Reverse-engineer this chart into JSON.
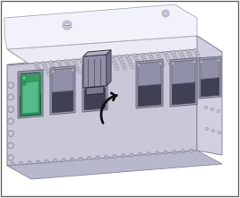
{
  "fig_width": 2.68,
  "fig_height": 2.21,
  "dpi": 100,
  "bg_color": "#ffffff",
  "chassis_top_color": "#e8e8f0",
  "chassis_front_color": "#c8c8d8",
  "chassis_side_color": "#d0d0e0",
  "chassis_edge_color": "#888899",
  "dot_fill": "#c0c0d0",
  "dot_edge": "#909098",
  "port_body_color": "#a8a8c0",
  "port_dark_color": "#888898",
  "port_inner_color": "#5a5a70",
  "port_open_color": "#404055",
  "sfp_color": "#8888a4",
  "sfp_dark": "#606078",
  "sfp_light": "#b0b0c8",
  "green_sfp": "#3a9a60",
  "green_dark": "#1a6a40",
  "green_inner": "#88ccaa",
  "arrow_color": "#111111",
  "white_panel_color": "#f0f0f8",
  "screw_color": "#c8c8d8",
  "screw_inner": "#e0e0ec"
}
